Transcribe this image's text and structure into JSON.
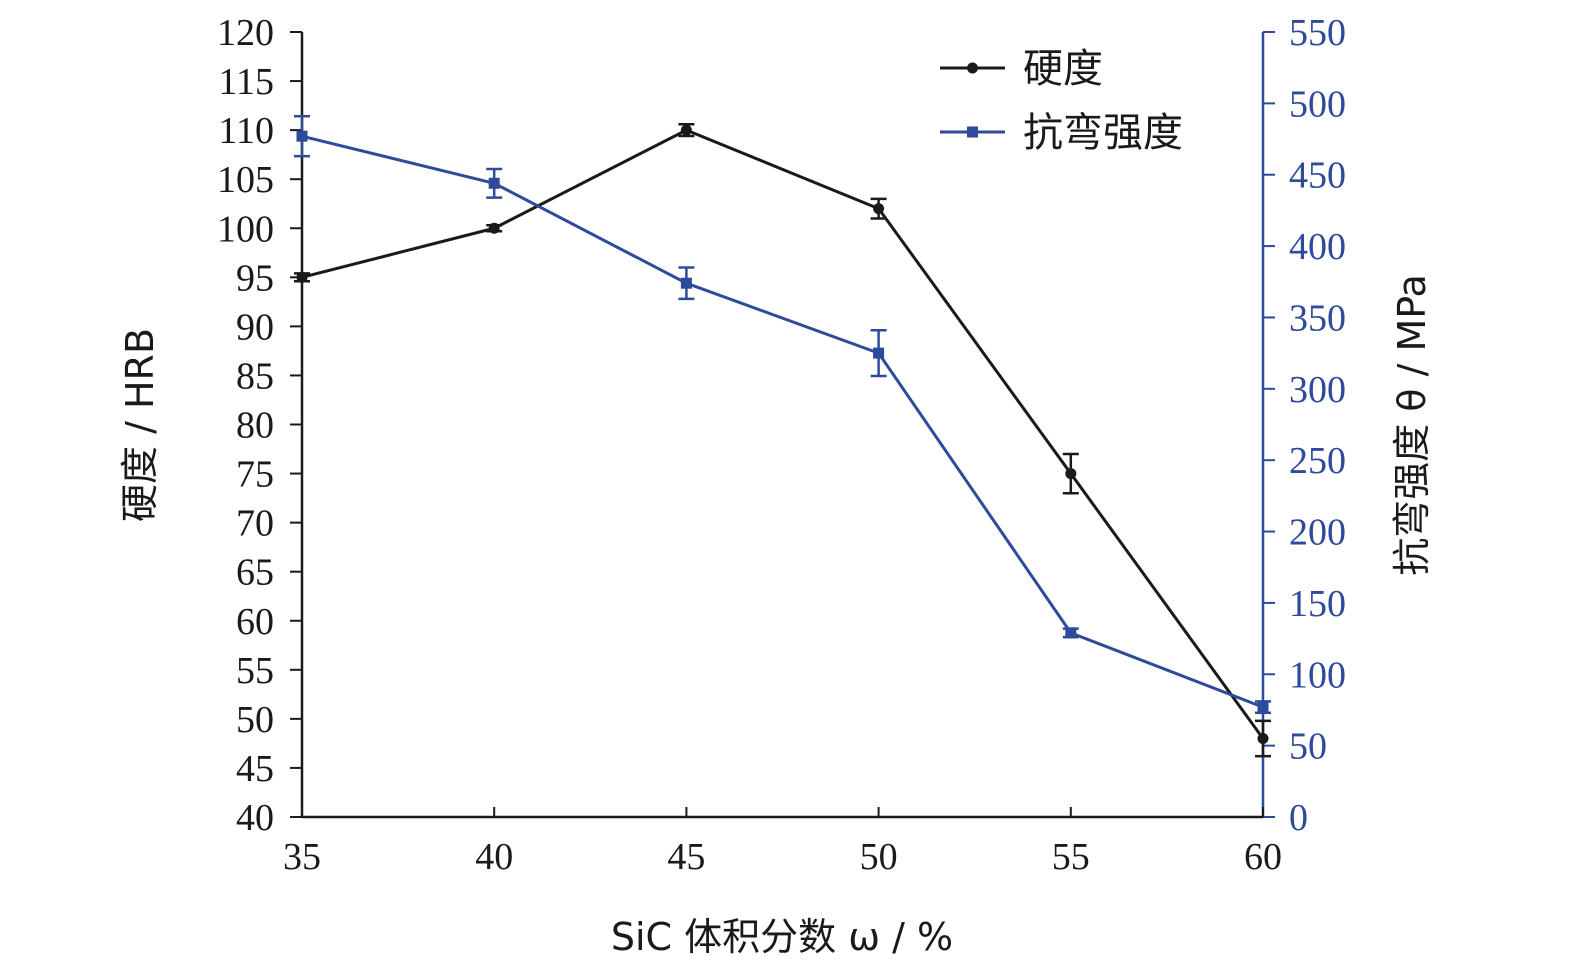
{
  "chart_data": {
    "type": "line",
    "x": [
      35,
      40,
      45,
      50,
      55,
      60
    ],
    "xlim": [
      35,
      60
    ],
    "x_ticks": [
      35,
      40,
      45,
      50,
      55,
      60
    ],
    "xlabel": "SiC 体积分数 ω / %",
    "ylabel": "硬度 / HRB",
    "ylim": [
      40,
      120
    ],
    "y_ticks": [
      40,
      45,
      50,
      55,
      60,
      65,
      70,
      75,
      80,
      85,
      90,
      95,
      100,
      105,
      110,
      115,
      120
    ],
    "y2label": "抗弯强度 θ / MPa",
    "y2lim": [
      0,
      550
    ],
    "y2_ticks": [
      0,
      50,
      100,
      150,
      200,
      250,
      300,
      350,
      400,
      450,
      500,
      550
    ],
    "grid": false,
    "legend_position": "top-right",
    "series": [
      {
        "name": "硬度",
        "axis": "left",
        "marker": "circle",
        "color": "#1a1a1a",
        "values": [
          95,
          100,
          110,
          102,
          75,
          48
        ],
        "errors": [
          0.4,
          0.3,
          0.6,
          1.0,
          2.0,
          1.8
        ]
      },
      {
        "name": "抗弯强度",
        "axis": "right",
        "marker": "square",
        "color": "#2e4a9a",
        "values": [
          477,
          444,
          374,
          325,
          129,
          77
        ],
        "errors": [
          14,
          10,
          11,
          16,
          3,
          4
        ]
      }
    ]
  }
}
